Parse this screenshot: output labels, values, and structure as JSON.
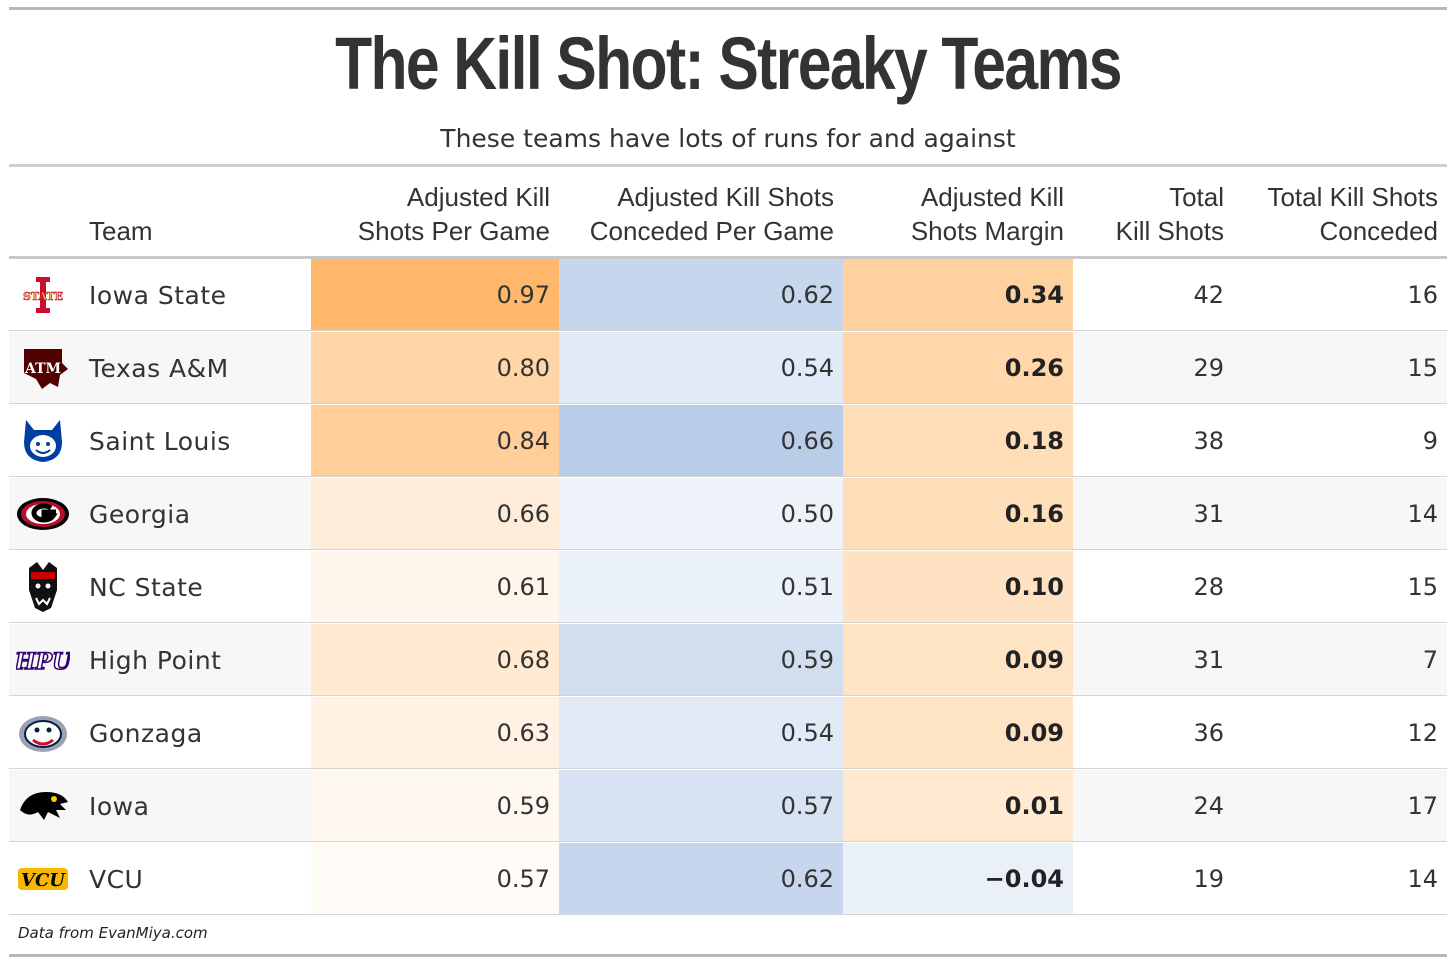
{
  "title": "The Kill Shot: Streaky Teams",
  "subtitle": "These teams have lots of runs for and against",
  "source": "Data from EvanMiya.com",
  "columns": [
    {
      "key": "team",
      "label_lines": [
        "Team"
      ]
    },
    {
      "key": "adj_kill_shots_pg",
      "label_lines": [
        "Adjusted Kill",
        "Shots Per Game"
      ]
    },
    {
      "key": "adj_conceded_pg",
      "label_lines": [
        "Adjusted Kill Shots",
        "Conceded Per Game"
      ]
    },
    {
      "key": "adj_margin",
      "label_lines": [
        "Adjusted Kill",
        "Shots Margin"
      ]
    },
    {
      "key": "total_kill_shots",
      "label_lines": [
        "Total",
        "Kill Shots"
      ]
    },
    {
      "key": "total_conceded",
      "label_lines": [
        "Total Kill Shots",
        "Conceded"
      ]
    }
  ],
  "colors": {
    "orange_max": "#ffb86b",
    "blue_max": "#b9cde9",
    "row_alt": "#f7f7f7"
  },
  "chart_data": {
    "type": "table",
    "title": "The Kill Shot: Streaky Teams",
    "subtitle": "These teams have lots of runs for and against",
    "rows": [
      {
        "team": "Iowa State",
        "logo": "iowa-state-logo",
        "adj_kill_shots_pg": "0.97",
        "adj_conceded_pg": "0.62",
        "adj_margin": "0.34",
        "total_kill_shots": "42",
        "total_conceded": "16"
      },
      {
        "team": "Texas A&M",
        "logo": "texas-am-logo",
        "adj_kill_shots_pg": "0.80",
        "adj_conceded_pg": "0.54",
        "adj_margin": "0.26",
        "total_kill_shots": "29",
        "total_conceded": "15"
      },
      {
        "team": "Saint Louis",
        "logo": "saint-louis-logo",
        "adj_kill_shots_pg": "0.84",
        "adj_conceded_pg": "0.66",
        "adj_margin": "0.18",
        "total_kill_shots": "38",
        "total_conceded": "9"
      },
      {
        "team": "Georgia",
        "logo": "georgia-logo",
        "adj_kill_shots_pg": "0.66",
        "adj_conceded_pg": "0.50",
        "adj_margin": "0.16",
        "total_kill_shots": "31",
        "total_conceded": "14"
      },
      {
        "team": "NC State",
        "logo": "nc-state-logo",
        "adj_kill_shots_pg": "0.61",
        "adj_conceded_pg": "0.51",
        "adj_margin": "0.10",
        "total_kill_shots": "28",
        "total_conceded": "15"
      },
      {
        "team": "High Point",
        "logo": "high-point-logo",
        "adj_kill_shots_pg": "0.68",
        "adj_conceded_pg": "0.59",
        "adj_margin": "0.09",
        "total_kill_shots": "31",
        "total_conceded": "7"
      },
      {
        "team": "Gonzaga",
        "logo": "gonzaga-logo",
        "adj_kill_shots_pg": "0.63",
        "adj_conceded_pg": "0.54",
        "adj_margin": "0.09",
        "total_kill_shots": "36",
        "total_conceded": "12"
      },
      {
        "team": "Iowa",
        "logo": "iowa-logo",
        "adj_kill_shots_pg": "0.59",
        "adj_conceded_pg": "0.57",
        "adj_margin": "0.01",
        "total_kill_shots": "24",
        "total_conceded": "17"
      },
      {
        "team": "VCU",
        "logo": "vcu-logo",
        "adj_kill_shots_pg": "0.57",
        "adj_conceded_pg": "0.62",
        "adj_margin": "−0.04",
        "total_kill_shots": "19",
        "total_conceded": "14"
      }
    ]
  }
}
